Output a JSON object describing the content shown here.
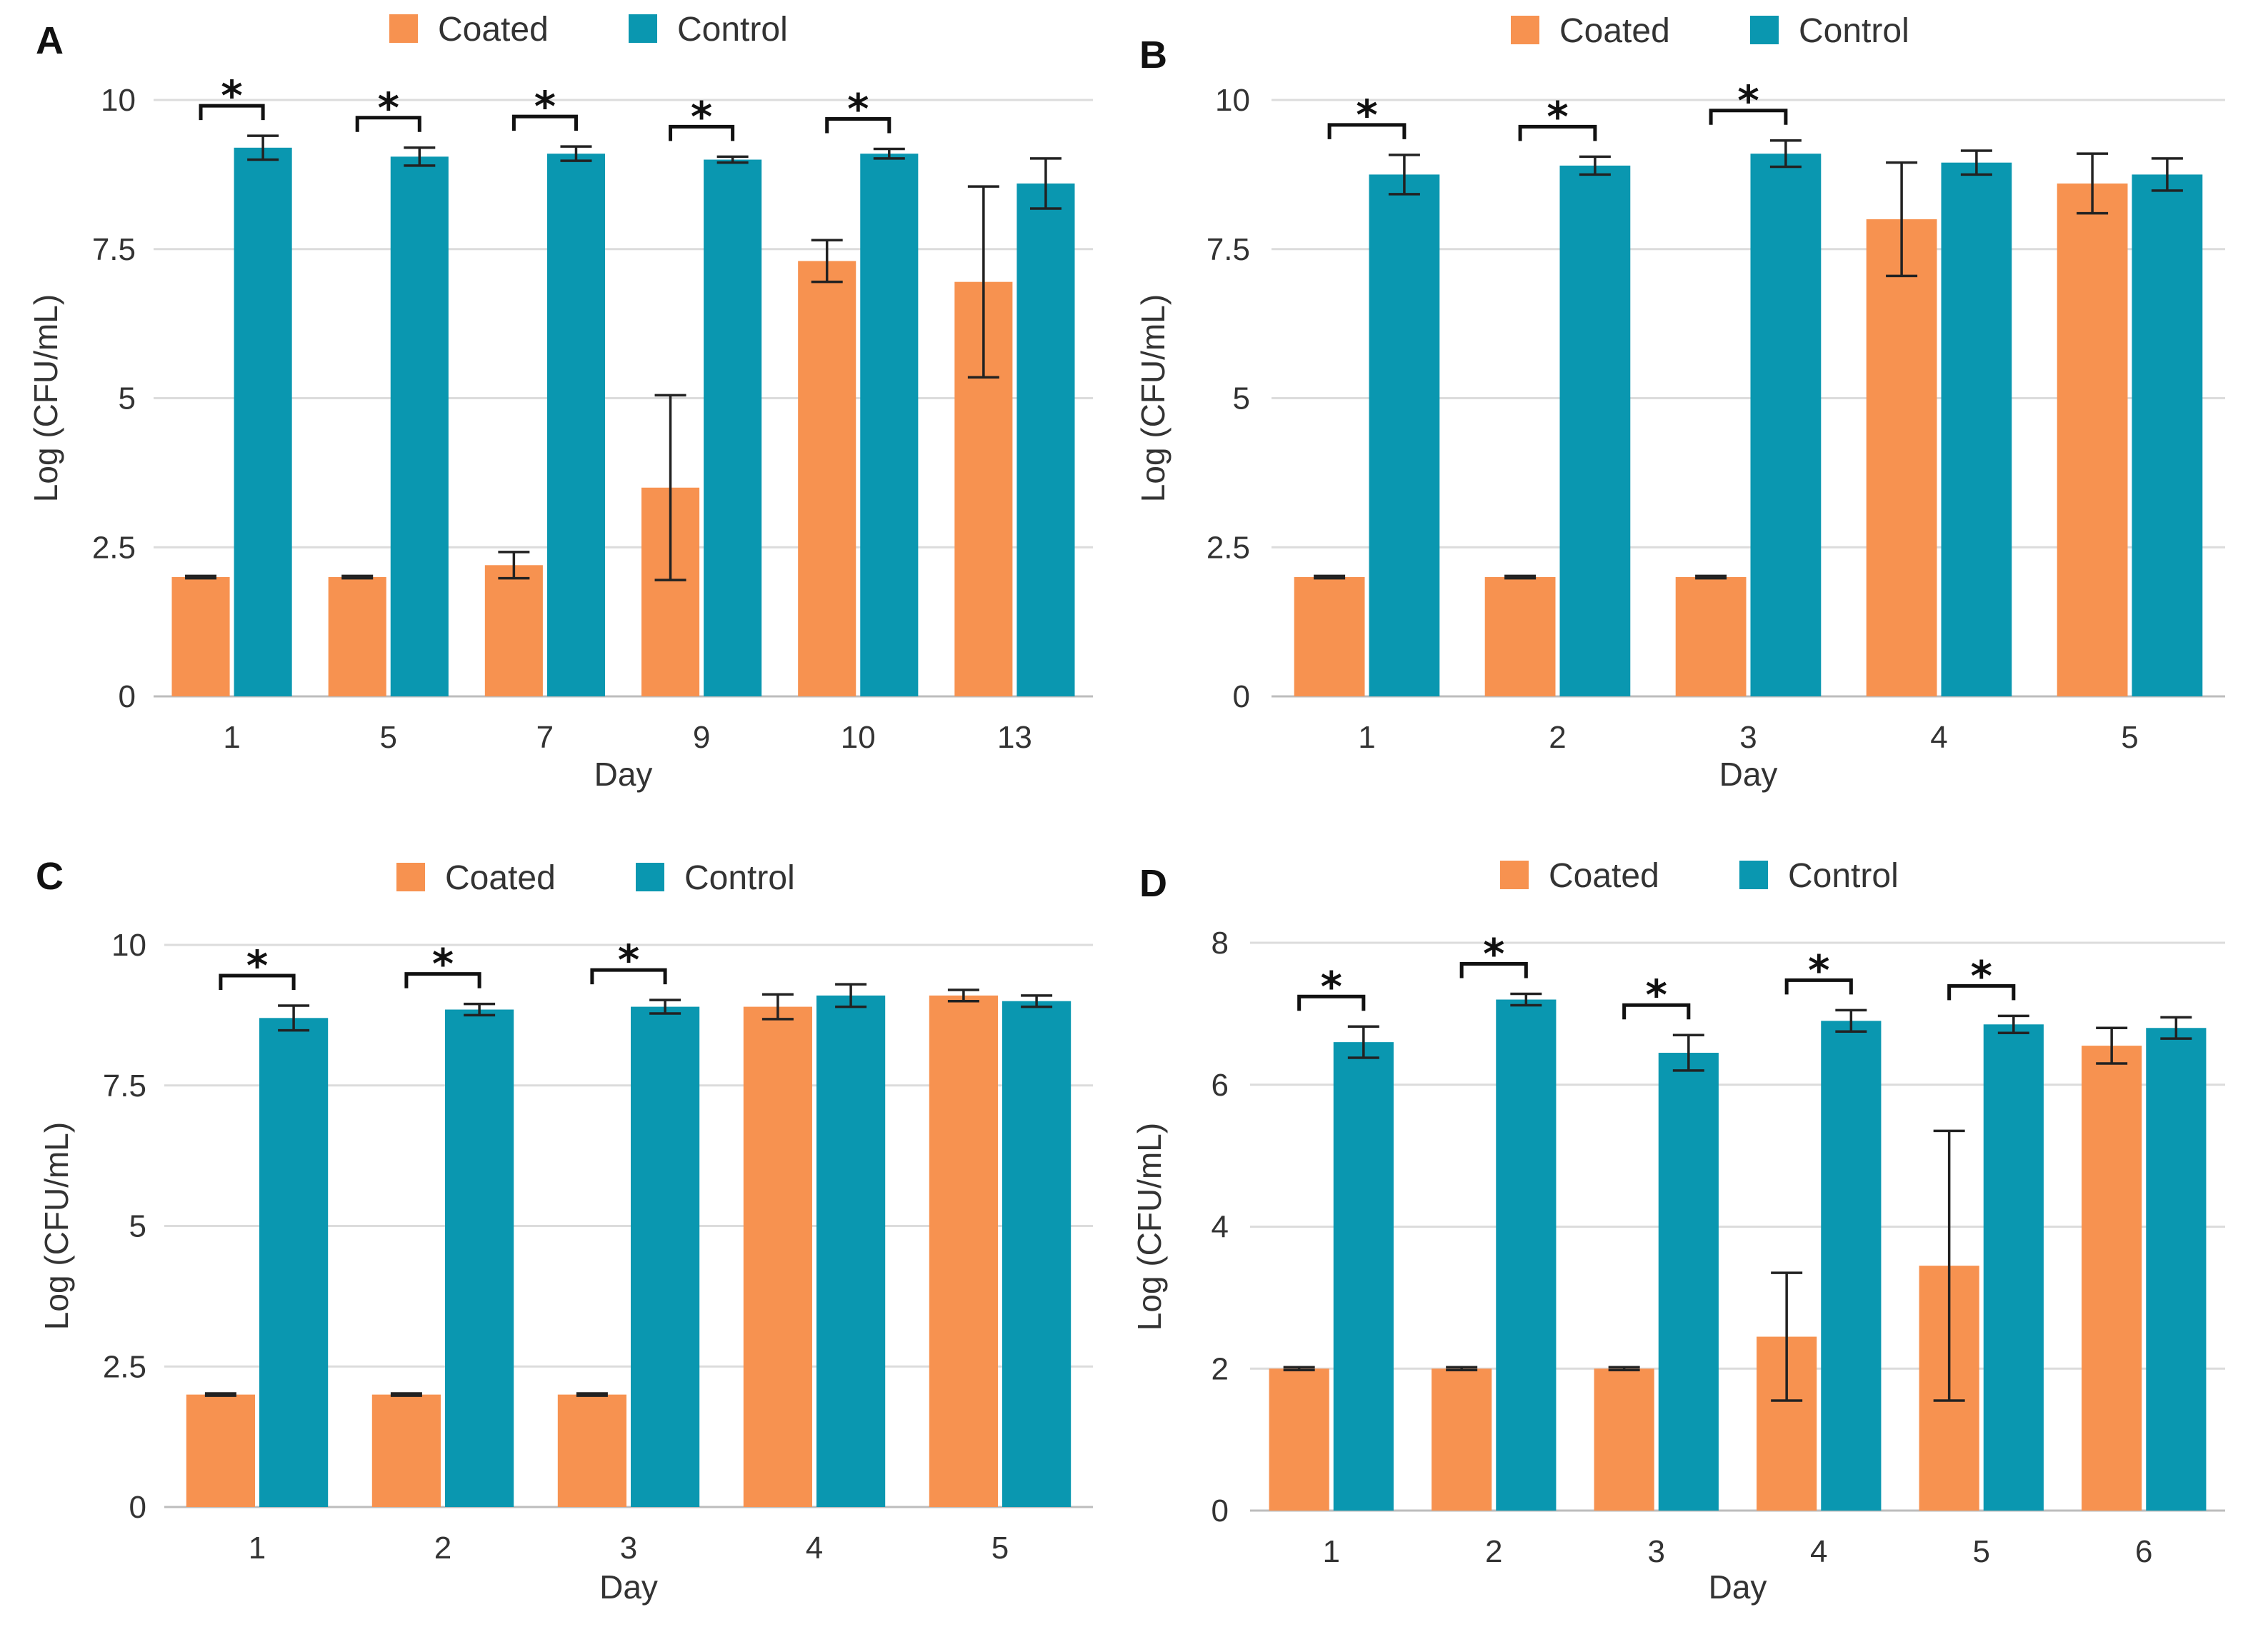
{
  "colors": {
    "coated": "#F79250",
    "control": "#0A97B0"
  },
  "legend": {
    "coated": "Coated",
    "control": "Control"
  },
  "chart_data": [
    {
      "type": "bar",
      "panel": "A",
      "xlabel": "Day",
      "ylabel": "Log (CFU/mL)",
      "ylim": [
        0,
        10
      ],
      "yticks": [
        "0",
        "2.5",
        "5",
        "7.5",
        "10"
      ],
      "categories": [
        "1",
        "5",
        "7",
        "9",
        "10",
        "13"
      ],
      "series": [
        {
          "name": "Coated",
          "values": [
            2.0,
            2.0,
            2.2,
            3.5,
            7.3,
            6.95
          ],
          "errors": [
            0.02,
            0.02,
            0.22,
            1.55,
            0.35,
            1.6
          ]
        },
        {
          "name": "Control",
          "values": [
            9.2,
            9.05,
            9.1,
            9.0,
            9.1,
            8.6
          ],
          "errors": [
            0.2,
            0.15,
            0.12,
            0.05,
            0.08,
            0.42
          ]
        }
      ],
      "significant": [
        "*",
        "*",
        "*",
        "*",
        "*",
        ""
      ]
    },
    {
      "type": "bar",
      "panel": "B",
      "xlabel": "Day",
      "ylabel": "Log (CFU/mL)",
      "ylim": [
        0,
        10
      ],
      "yticks": [
        "0",
        "2.5",
        "5",
        "7.5",
        "10"
      ],
      "categories": [
        "1",
        "2",
        "3",
        "4",
        "5"
      ],
      "series": [
        {
          "name": "Coated",
          "values": [
            2.0,
            2.0,
            2.0,
            8.0,
            8.6
          ],
          "errors": [
            0.02,
            0.02,
            0.02,
            0.95,
            0.5
          ]
        },
        {
          "name": "Control",
          "values": [
            8.75,
            8.9,
            9.1,
            8.95,
            8.75
          ],
          "errors": [
            0.33,
            0.15,
            0.22,
            0.2,
            0.27
          ]
        }
      ],
      "significant": [
        "*",
        "*",
        "*",
        "",
        ""
      ]
    },
    {
      "type": "bar",
      "panel": "C",
      "xlabel": "Day",
      "ylabel": "Log (CFU/mL)",
      "ylim": [
        0,
        10
      ],
      "yticks": [
        "0",
        "2.5",
        "5",
        "7.5",
        "10"
      ],
      "categories": [
        "1",
        "2",
        "3",
        "4",
        "5"
      ],
      "series": [
        {
          "name": "Coated",
          "values": [
            2.0,
            2.0,
            2.0,
            8.9,
            9.1
          ],
          "errors": [
            0.02,
            0.02,
            0.02,
            0.22,
            0.1
          ]
        },
        {
          "name": "Control",
          "values": [
            8.7,
            8.85,
            8.9,
            9.1,
            9.0
          ],
          "errors": [
            0.22,
            0.1,
            0.12,
            0.2,
            0.1
          ]
        }
      ],
      "significant": [
        "*",
        "*",
        "*",
        "",
        ""
      ]
    },
    {
      "type": "bar",
      "panel": "D",
      "xlabel": "Day",
      "ylabel": "Log (CFU/mL)",
      "ylim": [
        0,
        8
      ],
      "yticks": [
        "0",
        "2",
        "4",
        "6",
        "8"
      ],
      "categories": [
        "1",
        "2",
        "3",
        "4",
        "5",
        "6"
      ],
      "series": [
        {
          "name": "Coated",
          "values": [
            2.0,
            2.0,
            2.0,
            2.45,
            3.45,
            6.55
          ],
          "errors": [
            0.02,
            0.02,
            0.02,
            0.9,
            1.9,
            0.25
          ]
        },
        {
          "name": "Control",
          "values": [
            6.6,
            7.2,
            6.45,
            6.9,
            6.85,
            6.8
          ],
          "errors": [
            0.22,
            0.08,
            0.25,
            0.15,
            0.12,
            0.15
          ]
        }
      ],
      "significant": [
        "*",
        "*",
        "*",
        "*",
        "*",
        ""
      ]
    }
  ]
}
